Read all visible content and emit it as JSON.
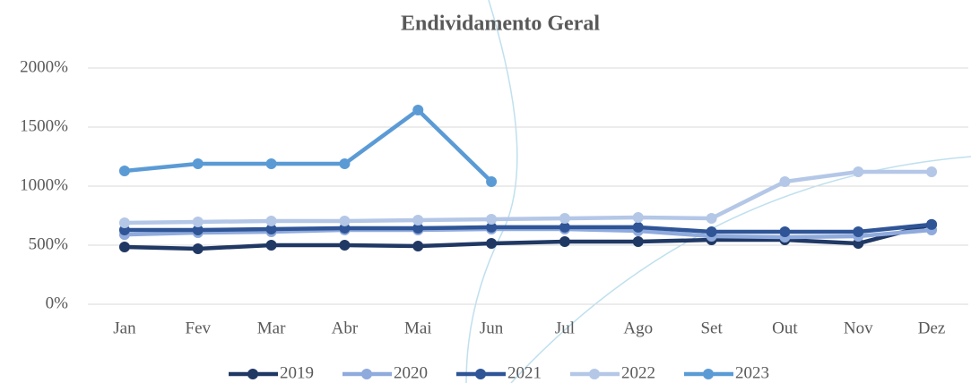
{
  "chart_data": {
    "type": "line",
    "title": "Endividamento Geral",
    "categories": [
      "Jan",
      "Fev",
      "Mar",
      "Abr",
      "Mai",
      "Jun",
      "Jul",
      "Ago",
      "Set",
      "Out",
      "Nov",
      "Dez"
    ],
    "ylim": [
      0,
      2000
    ],
    "yticks": [
      {
        "value": 0,
        "label": "0%"
      },
      {
        "value": 500,
        "label": "500%"
      },
      {
        "value": 1000,
        "label": "1000%"
      },
      {
        "value": 1500,
        "label": "1500%"
      },
      {
        "value": 2000,
        "label": "2000%"
      }
    ],
    "grid": true,
    "legend": "bottom",
    "series": [
      {
        "name": "2019",
        "color": "#203864",
        "values": [
          485,
          470,
          500,
          500,
          492,
          515,
          530,
          530,
          545,
          545,
          515,
          675
        ]
      },
      {
        "name": "2020",
        "color": "#8faadc",
        "values": [
          590,
          606,
          614,
          629,
          629,
          636,
          636,
          621,
          576,
          568,
          576,
          629
        ]
      },
      {
        "name": "2021",
        "color": "#2f5597",
        "values": [
          629,
          629,
          636,
          644,
          644,
          652,
          652,
          652,
          614,
          614,
          614,
          675
        ]
      },
      {
        "name": "2022",
        "color": "#b4c7e7",
        "values": [
          689,
          697,
          705,
          705,
          712,
          720,
          727,
          735,
          727,
          1038,
          1121,
          1121
        ]
      },
      {
        "name": "2023",
        "color": "#5b9bd5",
        "values": [
          1129,
          1189,
          1189,
          1189,
          1644,
          1038,
          null,
          null,
          null,
          null,
          null,
          null
        ]
      }
    ]
  }
}
